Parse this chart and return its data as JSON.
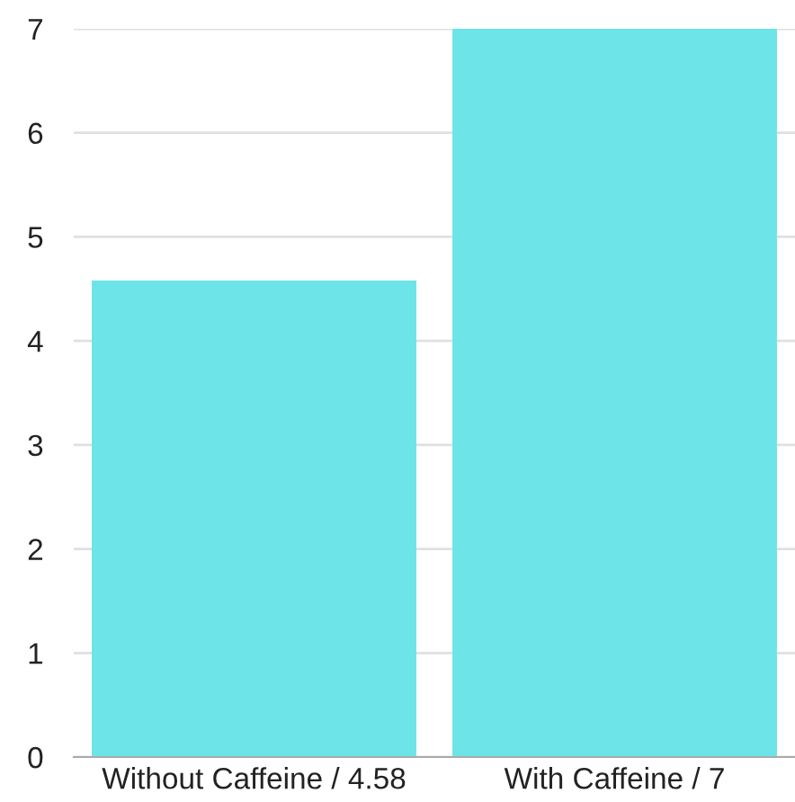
{
  "chart_data": {
    "type": "bar",
    "categories": [
      "Without Caffeine / 4.58",
      "With Caffeine / 7"
    ],
    "values": [
      4.58,
      7
    ],
    "color": "#6ce4e8",
    "ylim": [
      0,
      7
    ],
    "yticks": [
      0,
      1,
      2,
      3,
      4,
      5,
      6,
      7
    ],
    "grid": "y"
  }
}
